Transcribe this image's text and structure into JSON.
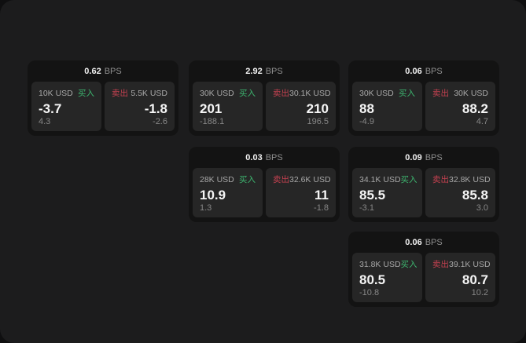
{
  "labels": {
    "buy": "买入",
    "sell": "卖出",
    "bps_unit": "BPS"
  },
  "colors": {
    "buy_green": "#3db56f",
    "sell_red": "#c44150",
    "panel_bg": "#1c1c1d",
    "card_bg": "#131313",
    "tile_bg": "#262626"
  },
  "cards": [
    {
      "bps": "0.62",
      "row": 0,
      "col": 0,
      "buy": {
        "amount": "10K USD",
        "price": "-3.7",
        "delta": "4.3"
      },
      "sell": {
        "amount": "5.5K USD",
        "price": "-1.8",
        "delta": "-2.6"
      }
    },
    {
      "bps": "2.92",
      "row": 0,
      "col": 1,
      "buy": {
        "amount": "30K USD",
        "price": "201",
        "delta": "-188.1"
      },
      "sell": {
        "amount": "30.1K USD",
        "price": "210",
        "delta": "196.5"
      }
    },
    {
      "bps": "0.06",
      "row": 0,
      "col": 2,
      "buy": {
        "amount": "30K USD",
        "price": "88",
        "delta": "-4.9"
      },
      "sell": {
        "amount": "30K USD",
        "price": "88.2",
        "delta": "4.7"
      }
    },
    {
      "bps": "0.03",
      "row": 1,
      "col": 1,
      "buy": {
        "amount": "28K USD",
        "price": "10.9",
        "delta": "1.3"
      },
      "sell": {
        "amount": "32.6K USD",
        "price": "11",
        "delta": "-1.8"
      }
    },
    {
      "bps": "0.09",
      "row": 1,
      "col": 2,
      "buy": {
        "amount": "34.1K USD",
        "price": "85.5",
        "delta": "-3.1"
      },
      "sell": {
        "amount": "32.8K USD",
        "price": "85.8",
        "delta": "3.0"
      }
    },
    {
      "bps": "0.06",
      "row": 2,
      "col": 2,
      "buy": {
        "amount": "31.8K USD",
        "price": "80.5",
        "delta": "-10.8"
      },
      "sell": {
        "amount": "39.1K USD",
        "price": "80.7",
        "delta": "10.2"
      }
    }
  ]
}
